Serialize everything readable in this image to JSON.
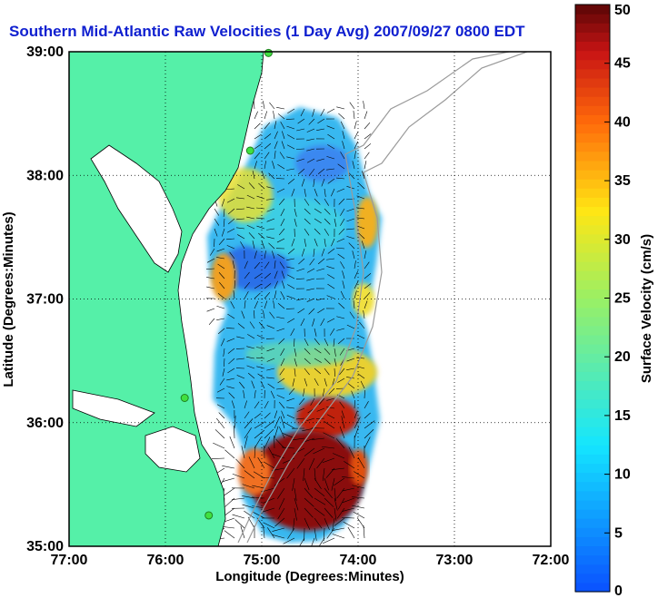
{
  "title": "Southern Mid-Atlantic Raw Velocities (1 Day Avg) 2007/09/27 0800 EDT",
  "map": {
    "x_label": "Longitude (Degrees:Minutes)",
    "y_label": "Latitude (Degrees:Minutes)",
    "lon_range": [
      -77,
      -72
    ],
    "lat_range": [
      35,
      39
    ],
    "x_ticks": [
      {
        "value": -77,
        "label": "77:00"
      },
      {
        "value": -76,
        "label": "76:00"
      },
      {
        "value": -75,
        "label": "75:00"
      },
      {
        "value": -74,
        "label": "74:00"
      },
      {
        "value": -73,
        "label": "73:00"
      },
      {
        "value": -72,
        "label": "72:00"
      }
    ],
    "y_ticks": [
      {
        "value": 35,
        "label": "35:00"
      },
      {
        "value": 36,
        "label": "36:00"
      },
      {
        "value": 37,
        "label": "37:00"
      },
      {
        "value": 38,
        "label": "38:00"
      },
      {
        "value": 39,
        "label": "39:00"
      }
    ],
    "grid": "dotted",
    "land_color": "#55f0a8",
    "sea_color": "#ffffff",
    "station_color": "#40e040",
    "stations": [
      {
        "lon": -75.8,
        "lat": 36.2
      },
      {
        "lon": -75.55,
        "lat": 35.25
      },
      {
        "lon": -75.12,
        "lat": 38.2
      },
      {
        "lon": -74.93,
        "lat": 38.99
      }
    ]
  },
  "colorbar": {
    "label": "Surface Velocity (cm/s)",
    "min": 0,
    "max": 50,
    "ticks": [
      {
        "value": 0,
        "label": "0"
      },
      {
        "value": 5,
        "label": "5"
      },
      {
        "value": 10,
        "label": "10"
      },
      {
        "value": 15,
        "label": "15"
      },
      {
        "value": 20,
        "label": "20"
      },
      {
        "value": 25,
        "label": "25"
      },
      {
        "value": 30,
        "label": "30"
      },
      {
        "value": 35,
        "label": "35"
      },
      {
        "value": 40,
        "label": "40"
      },
      {
        "value": 45,
        "label": "45"
      },
      {
        "value": 50,
        "label": "50"
      }
    ]
  }
}
